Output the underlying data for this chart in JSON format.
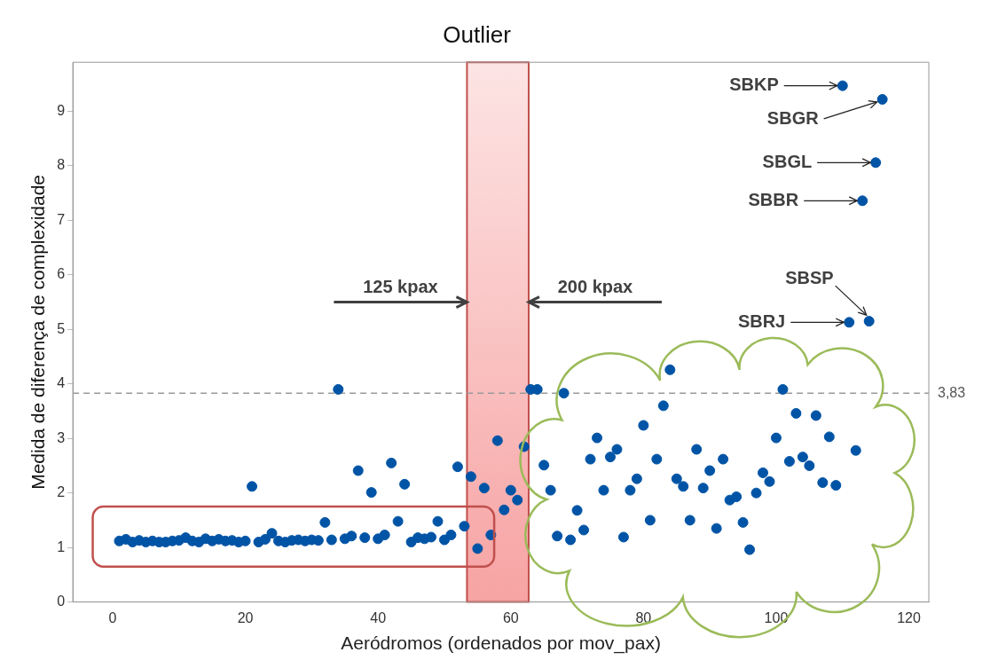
{
  "chart_data": {
    "type": "scatter",
    "title": "Outlier",
    "xlabel": "Aeródromos (ordenados por mov_pax)",
    "ylabel": "Medida de diferença de complexidade",
    "x": [
      1,
      2,
      3,
      4,
      5,
      6,
      7,
      8,
      9,
      10,
      11,
      12,
      13,
      14,
      15,
      16,
      17,
      18,
      19,
      20,
      21,
      22,
      23,
      24,
      25,
      26,
      27,
      28,
      29,
      30,
      31,
      32,
      33,
      34,
      35,
      36,
      37,
      38,
      39,
      40,
      41,
      42,
      43,
      44,
      45,
      46,
      47,
      48,
      49,
      50,
      51,
      52,
      53,
      54,
      55,
      56,
      57,
      58,
      59,
      60,
      61,
      62,
      63,
      64,
      65,
      66,
      67,
      68,
      69,
      70,
      71,
      72,
      73,
      74,
      75,
      76,
      77,
      78,
      79,
      80,
      81,
      82,
      83,
      84,
      85,
      86,
      87,
      88,
      89,
      90,
      91,
      92,
      93,
      94,
      95,
      96,
      97,
      98,
      99,
      100,
      101,
      102,
      103,
      104,
      105,
      106,
      107,
      108,
      109,
      110,
      111,
      112,
      113,
      114,
      115,
      116
    ],
    "series": [
      {
        "color": "#0054a6",
        "values": [
          1.12,
          1.15,
          1.1,
          1.13,
          1.1,
          1.12,
          1.1,
          1.1,
          1.12,
          1.13,
          1.18,
          1.12,
          1.1,
          1.16,
          1.12,
          1.15,
          1.12,
          1.13,
          1.1,
          1.12,
          2.12,
          1.1,
          1.15,
          1.26,
          1.12,
          1.1,
          1.13,
          1.14,
          1.12,
          1.14,
          1.13,
          1.46,
          1.14,
          3.9,
          1.16,
          1.21,
          2.41,
          1.18,
          2.01,
          1.16,
          1.23,
          2.55,
          1.48,
          2.16,
          1.1,
          1.18,
          1.16,
          1.19,
          1.48,
          1.14,
          1.23,
          2.48,
          1.39,
          2.3,
          0.98,
          2.09,
          1.23,
          2.96,
          1.69,
          2.05,
          1.87,
          2.85,
          3.9,
          3.9,
          2.51,
          2.05,
          1.21,
          3.83,
          1.14,
          1.68,
          1.32,
          2.62,
          3.01,
          2.05,
          2.66,
          2.8,
          1.19,
          2.05,
          2.26,
          3.24,
          1.5,
          2.62,
          3.6,
          4.26,
          2.26,
          2.12,
          1.5,
          2.8,
          2.09,
          2.41,
          1.35,
          2.62,
          1.87,
          1.93,
          1.46,
          0.96,
          2.0,
          2.37,
          2.21,
          3.01,
          3.9,
          2.58,
          3.46,
          2.66,
          2.5,
          3.42,
          2.19,
          3.03,
          2.14,
          9.47,
          5.13,
          2.78,
          7.36,
          5.15,
          8.06,
          9.22
        ]
      }
    ],
    "xlim": [
      -6,
      123
    ],
    "xticks": [
      0,
      20,
      40,
      60,
      80,
      100,
      120
    ],
    "ylim": [
      0,
      9.9
    ],
    "yticks": [
      0,
      1,
      2,
      3,
      4,
      5,
      6,
      7,
      8,
      9
    ],
    "marker": "circle",
    "grid": false,
    "legend": false,
    "ref_lines": [
      {
        "axis": "y",
        "value": 3.83,
        "label": "3,83",
        "color": "#999999",
        "line_style": "dashed"
      }
    ],
    "bands": [
      {
        "axis": "x",
        "from": 53.4,
        "to": 62.7,
        "color": "#f7a3a3"
      }
    ],
    "annotations": [
      {
        "text": "125 kpax",
        "x": 53.4,
        "y": 5.5
      },
      {
        "text": "200 kpax",
        "x": 62.7,
        "y": 5.5
      },
      {
        "text": "SBKP",
        "x": 110,
        "y": 9.47
      },
      {
        "text": "SBGR",
        "x": 116,
        "y": 9.22
      },
      {
        "text": "SBGL",
        "x": 115,
        "y": 8.06
      },
      {
        "text": "SBBR",
        "x": 113,
        "y": 7.36
      },
      {
        "text": "SBSP",
        "x": 114,
        "y": 5.15
      },
      {
        "text": "SBRJ",
        "x": 111,
        "y": 5.13
      }
    ]
  }
}
